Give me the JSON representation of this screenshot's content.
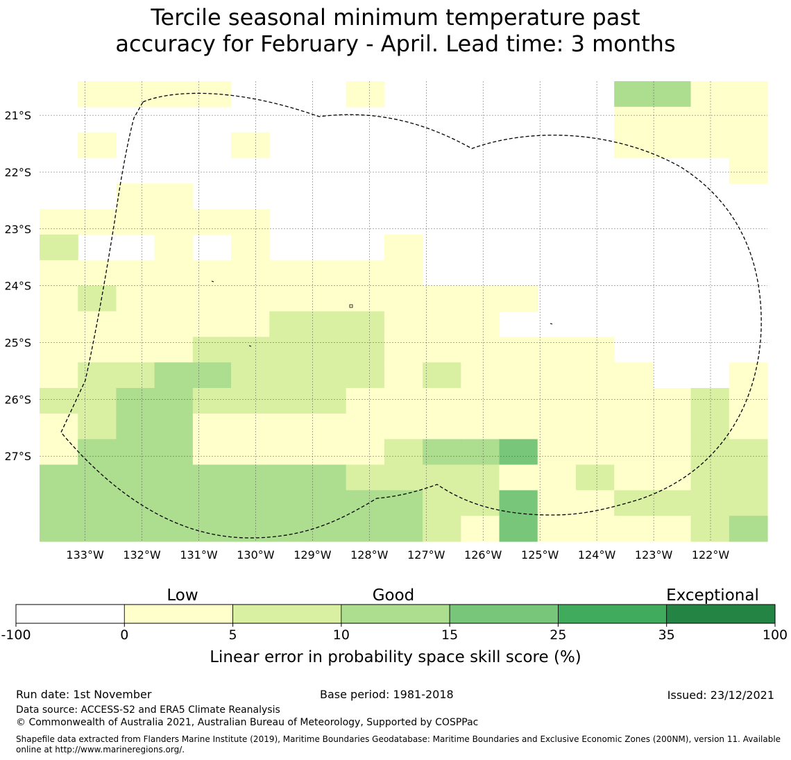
{
  "title": {
    "line1": "Tercile seasonal minimum temperature past",
    "line2": "accuracy for February - April. Lead time: 3 months"
  },
  "map": {
    "lat_labels": [
      "21°S",
      "22°S",
      "23°S",
      "24°S",
      "25°S",
      "26°S",
      "27°S"
    ],
    "lat_values": [
      -21,
      -22,
      -23,
      -24,
      -25,
      -26,
      -27
    ],
    "lon_labels": [
      "133°W",
      "132°W",
      "131°W",
      "130°W",
      "129°W",
      "128°W",
      "127°W",
      "126°W",
      "125°W",
      "124°W",
      "123°W",
      "122°W"
    ],
    "lon_values": [
      -133,
      -132,
      -131,
      -130,
      -129,
      -128,
      -127,
      -126,
      -125,
      -124,
      -123,
      -122
    ],
    "extent": {
      "lon_min": -133.8,
      "lon_max": -121.0,
      "lat_north": -20.4,
      "lat_south": -28.5
    },
    "grid_cell_deg": 0.833,
    "skill_grid_legend": "0 = below 0 (white), 1 = 0-5, 2 = 5-10, 3 = 10-15, 4 = 15-25",
    "skill_grid": [
      "0111100010000003311",
      "0000000000000001111",
      "0100010000000001111",
      "0000000000000000001",
      "0011000000000000000",
      "1111110000000000000",
      "2001010001000000000",
      "1111111111000000000",
      "1211111111111000000",
      "1111112221110000000",
      "1111222221111110000",
      "1223322221211111001",
      "2233222211111111121",
      "1233111111111111121",
      "1333111112334111122",
      "3333333322221121122",
      "3333333333224112222",
      "3333333333214111123"
    ]
  },
  "colorbar": {
    "category_labels": [
      "Low",
      "Good",
      "Exceptional"
    ],
    "boundaries": [
      "-100",
      "0",
      "5",
      "10",
      "15",
      "25",
      "35",
      "100"
    ],
    "colors": [
      "#ffffff",
      "#ffffcc",
      "#d9f0a3",
      "#addd8e",
      "#78c679",
      "#41ab5d",
      "#238443"
    ],
    "label": "Linear error in probability space skill score (%)"
  },
  "footer": {
    "run_date": "Run date: 1st November",
    "base_period": "Base period: 1981-2018",
    "issued": "Issued: 23/12/2021",
    "data_source": "Data source: ACCESS-S2 and ERA5 Climate Reanalysis",
    "copyright": "© Commonwealth of Australia 2021, Australian Bureau of Meteorology, Supported by COSPPac",
    "shapefile": "Shapefile data extracted from Flanders Marine Institute (2019), Maritime Boundaries Geodatabase: Maritime Boundaries and Exclusive Economic Zones (200NM), version 11. Available online at http://www.marineregions.org/."
  }
}
